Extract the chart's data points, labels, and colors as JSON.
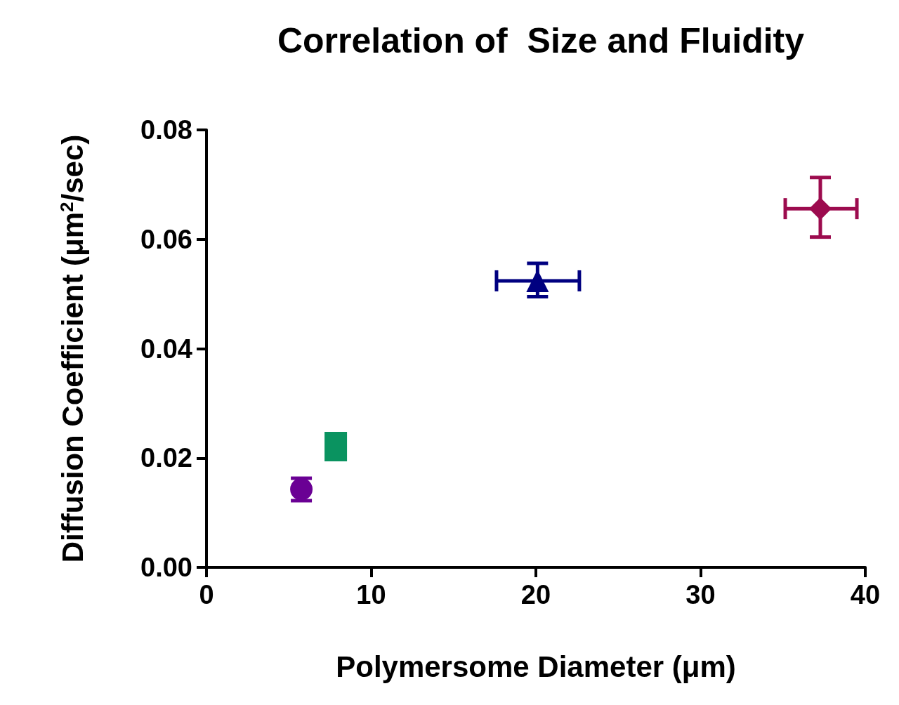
{
  "chart_data": {
    "type": "scatter",
    "title": "Correlation of  Size and Fluidity",
    "xlabel": "Polymersome Diameter (μm)",
    "ylabel": "Diffusion Coefficient (μm$^{2}$/sec)",
    "xlim": [
      0,
      40
    ],
    "xticks": [
      0,
      10,
      20,
      30,
      40
    ],
    "ylim": [
      0,
      0.08
    ],
    "yticks": [
      {
        "value": 0,
        "label": "0.00"
      },
      {
        "value": 0.02,
        "label": "0.02"
      },
      {
        "value": 0.04,
        "label": "0.04"
      },
      {
        "value": 0.06,
        "label": "0.06"
      },
      {
        "value": 0.08,
        "label": "0.08"
      }
    ],
    "grid": false,
    "series": [
      {
        "color": "#6a0094",
        "marker": "circle",
        "x": [
          5.76
        ],
        "values": [
          0.0143
        ],
        "errors": [
          [
            0.0122,
            0.0163
          ]
        ]
      },
      {
        "color": "#0a9360",
        "marker": "square",
        "x": [
          7.85
        ],
        "values": [
          0.0221
        ]
      },
      {
        "color": "#000080",
        "marker": "triangle",
        "x": [
          20.1
        ],
        "values": [
          0.0524
        ],
        "errors": [
          [
            0.0495,
            0.0556
          ]
        ],
        "xerrors": [
          [
            17.61,
            22.64
          ]
        ]
      },
      {
        "color": "#9c0b4e",
        "marker": "diamond",
        "x": [
          37.27
        ],
        "values": [
          0.0656
        ],
        "errors": [
          [
            0.0604,
            0.0713
          ]
        ],
        "xerrors": [
          [
            35.14,
            39.49
          ]
        ]
      }
    ]
  }
}
